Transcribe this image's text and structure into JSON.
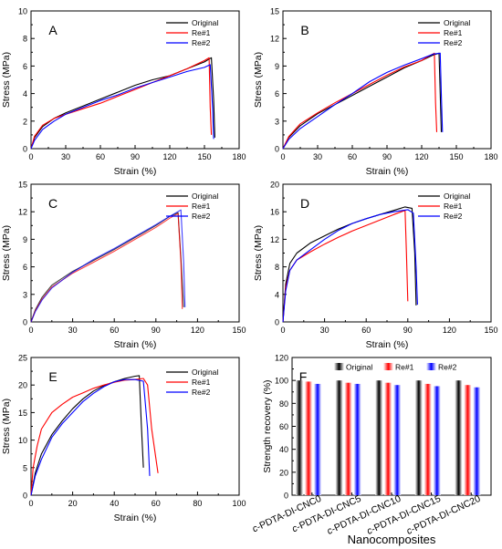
{
  "colors": {
    "original": "#000000",
    "re1": "#ff0000",
    "re2": "#0000ff"
  },
  "chart_data": [
    {
      "panel": "A",
      "type": "line",
      "xlabel": "Strain (%)",
      "ylabel": "Stress (MPa)",
      "xlim": [
        0,
        180
      ],
      "ylim": [
        0,
        10
      ],
      "xticks": [
        "0",
        "30",
        "60",
        "90",
        "120",
        "150",
        "180"
      ],
      "yticks": [
        "0",
        "2",
        "4",
        "6",
        "8",
        "10"
      ],
      "legend": "top-right",
      "grid": false,
      "series": [
        {
          "name": "Original",
          "color": "#000000",
          "points": [
            [
              0,
              0
            ],
            [
              3,
              0.8
            ],
            [
              10,
              1.6
            ],
            [
              20,
              2.2
            ],
            [
              30,
              2.6
            ],
            [
              45,
              3.1
            ],
            [
              60,
              3.6
            ],
            [
              75,
              4.1
            ],
            [
              90,
              4.6
            ],
            [
              105,
              5.0
            ],
            [
              120,
              5.3
            ],
            [
              135,
              5.8
            ],
            [
              150,
              6.3
            ],
            [
              156,
              6.6
            ],
            [
              158,
              3.5
            ],
            [
              159,
              0.8
            ]
          ]
        },
        {
          "name": "Re#1",
          "color": "#ff0000",
          "points": [
            [
              0,
              0
            ],
            [
              3,
              0.9
            ],
            [
              10,
              1.7
            ],
            [
              20,
              2.2
            ],
            [
              30,
              2.5
            ],
            [
              45,
              2.9
            ],
            [
              60,
              3.3
            ],
            [
              75,
              3.8
            ],
            [
              90,
              4.3
            ],
            [
              105,
              4.8
            ],
            [
              120,
              5.3
            ],
            [
              135,
              5.8
            ],
            [
              150,
              6.4
            ],
            [
              154,
              6.6
            ],
            [
              155,
              3.0
            ],
            [
              156,
              1.0
            ]
          ]
        },
        {
          "name": "Re#2",
          "color": "#0000ff",
          "points": [
            [
              0,
              0
            ],
            [
              3,
              0.6
            ],
            [
              10,
              1.4
            ],
            [
              20,
              2.0
            ],
            [
              30,
              2.5
            ],
            [
              45,
              3.0
            ],
            [
              60,
              3.5
            ],
            [
              75,
              3.9
            ],
            [
              90,
              4.4
            ],
            [
              105,
              4.8
            ],
            [
              120,
              5.2
            ],
            [
              135,
              5.6
            ],
            [
              150,
              5.9
            ],
            [
              155,
              6.1
            ],
            [
              157,
              3.0
            ],
            [
              158,
              0.7
            ]
          ]
        }
      ]
    },
    {
      "panel": "B",
      "type": "line",
      "xlabel": "Strain (%)",
      "ylabel": "Stress (MPa)",
      "xlim": [
        0,
        180
      ],
      "ylim": [
        0,
        15
      ],
      "xticks": [
        "0",
        "30",
        "60",
        "90",
        "120",
        "150",
        "180"
      ],
      "yticks": [
        "0",
        "3",
        "6",
        "9",
        "12",
        "15"
      ],
      "legend": "top-right",
      "grid": false,
      "series": [
        {
          "name": "Original",
          "color": "#000000",
          "points": [
            [
              0,
              0
            ],
            [
              5,
              1.2
            ],
            [
              15,
              2.5
            ],
            [
              30,
              3.8
            ],
            [
              45,
              4.8
            ],
            [
              60,
              5.8
            ],
            [
              75,
              6.8
            ],
            [
              90,
              7.8
            ],
            [
              105,
              8.8
            ],
            [
              120,
              9.6
            ],
            [
              130,
              10.2
            ],
            [
              135,
              10.4
            ],
            [
              136,
              6.0
            ],
            [
              137,
              1.8
            ]
          ]
        },
        {
          "name": "Re#1",
          "color": "#ff0000",
          "points": [
            [
              0,
              0
            ],
            [
              5,
              1.3
            ],
            [
              15,
              2.7
            ],
            [
              30,
              3.9
            ],
            [
              45,
              5.0
            ],
            [
              60,
              6.0
            ],
            [
              75,
              7.0
            ],
            [
              90,
              8.0
            ],
            [
              105,
              8.9
            ],
            [
              120,
              9.6
            ],
            [
              128,
              10.2
            ],
            [
              131,
              10.4
            ],
            [
              132,
              5.0
            ],
            [
              133,
              1.8
            ]
          ]
        },
        {
          "name": "Re#2",
          "color": "#0000ff",
          "points": [
            [
              0,
              0
            ],
            [
              5,
              1.0
            ],
            [
              15,
              2.2
            ],
            [
              30,
              3.5
            ],
            [
              45,
              4.8
            ],
            [
              60,
              6.0
            ],
            [
              75,
              7.3
            ],
            [
              90,
              8.3
            ],
            [
              105,
              9.1
            ],
            [
              120,
              9.8
            ],
            [
              130,
              10.3
            ],
            [
              136,
              10.4
            ],
            [
              137,
              6.0
            ],
            [
              138,
              1.8
            ]
          ]
        }
      ]
    },
    {
      "panel": "C",
      "type": "line",
      "xlabel": "Strain (%)",
      "ylabel": "Stress (MPa)",
      "xlim": [
        0,
        150
      ],
      "ylim": [
        0,
        15
      ],
      "xticks": [
        "0",
        "30",
        "60",
        "90",
        "120",
        "150"
      ],
      "yticks": [
        "0",
        "3",
        "6",
        "9",
        "12",
        "15"
      ],
      "legend": "top-right",
      "grid": false,
      "series": [
        {
          "name": "Original",
          "color": "#000000",
          "points": [
            [
              0,
              0
            ],
            [
              3,
              1.3
            ],
            [
              8,
              2.7
            ],
            [
              15,
              4.0
            ],
            [
              30,
              5.5
            ],
            [
              45,
              6.7
            ],
            [
              60,
              7.9
            ],
            [
              75,
              9.2
            ],
            [
              90,
              10.5
            ],
            [
              100,
              11.5
            ],
            [
              106,
              11.9
            ],
            [
              108,
              7.0
            ],
            [
              110,
              1.6
            ]
          ]
        },
        {
          "name": "Re#1",
          "color": "#ff0000",
          "points": [
            [
              0,
              0
            ],
            [
              3,
              1.2
            ],
            [
              8,
              2.5
            ],
            [
              15,
              3.8
            ],
            [
              30,
              5.3
            ],
            [
              45,
              6.5
            ],
            [
              60,
              7.7
            ],
            [
              75,
              9.0
            ],
            [
              90,
              10.3
            ],
            [
              100,
              11.3
            ],
            [
              106,
              11.8
            ],
            [
              108,
              6.5
            ],
            [
              109,
              1.4
            ]
          ]
        },
        {
          "name": "Re#2",
          "color": "#0000ff",
          "points": [
            [
              0,
              0
            ],
            [
              3,
              1.1
            ],
            [
              8,
              2.4
            ],
            [
              15,
              3.7
            ],
            [
              30,
              5.4
            ],
            [
              45,
              6.8
            ],
            [
              60,
              8.0
            ],
            [
              75,
              9.3
            ],
            [
              90,
              10.6
            ],
            [
              100,
              11.5
            ],
            [
              108,
              12.2
            ],
            [
              110,
              6.5
            ],
            [
              111,
              1.6
            ]
          ]
        }
      ]
    },
    {
      "panel": "D",
      "type": "line",
      "xlabel": "Strain (%)",
      "ylabel": "Stress (MPa)",
      "xlim": [
        0,
        150
      ],
      "ylim": [
        0,
        20
      ],
      "xticks": [
        "0",
        "30",
        "60",
        "90",
        "120",
        "150"
      ],
      "yticks": [
        "0",
        "4",
        "8",
        "12",
        "16",
        "20"
      ],
      "legend": "top-right",
      "grid": false,
      "series": [
        {
          "name": "Original",
          "color": "#000000",
          "points": [
            [
              0,
              0
            ],
            [
              2,
              5.5
            ],
            [
              5,
              8.5
            ],
            [
              10,
              10.0
            ],
            [
              20,
              11.5
            ],
            [
              30,
              12.5
            ],
            [
              40,
              13.5
            ],
            [
              50,
              14.3
            ],
            [
              60,
              15.0
            ],
            [
              70,
              15.6
            ],
            [
              80,
              16.2
            ],
            [
              88,
              16.7
            ],
            [
              93,
              16.5
            ],
            [
              95,
              10.0
            ],
            [
              96,
              2.4
            ]
          ]
        },
        {
          "name": "Re#1",
          "color": "#ff0000",
          "points": [
            [
              0,
              0
            ],
            [
              2,
              5.0
            ],
            [
              5,
              7.5
            ],
            [
              10,
              9.0
            ],
            [
              20,
              10.2
            ],
            [
              30,
              11.3
            ],
            [
              40,
              12.3
            ],
            [
              50,
              13.2
            ],
            [
              60,
              14.0
            ],
            [
              70,
              14.8
            ],
            [
              80,
              15.6
            ],
            [
              88,
              16.2
            ],
            [
              89,
              10.0
            ],
            [
              90,
              3.0
            ]
          ]
        },
        {
          "name": "Re#2",
          "color": "#0000ff",
          "points": [
            [
              0,
              0
            ],
            [
              2,
              4.5
            ],
            [
              5,
              7.5
            ],
            [
              10,
              9.0
            ],
            [
              20,
              10.5
            ],
            [
              30,
              12.0
            ],
            [
              40,
              13.3
            ],
            [
              50,
              14.3
            ],
            [
              60,
              15.0
            ],
            [
              70,
              15.6
            ],
            [
              80,
              16.0
            ],
            [
              90,
              16.3
            ],
            [
              94,
              15.8
            ],
            [
              96,
              8.0
            ],
            [
              97,
              2.5
            ]
          ]
        }
      ]
    },
    {
      "panel": "E",
      "type": "line",
      "xlabel": "Strain (%)",
      "ylabel": "Stress (MPa)",
      "xlim": [
        0,
        100
      ],
      "ylim": [
        0,
        25
      ],
      "xticks": [
        "0",
        "20",
        "40",
        "60",
        "80",
        "100"
      ],
      "yticks": [
        "0",
        "5",
        "10",
        "15",
        "20",
        "25"
      ],
      "legend": "top-right",
      "grid": false,
      "series": [
        {
          "name": "Original",
          "color": "#000000",
          "points": [
            [
              0,
              0
            ],
            [
              2,
              4.0
            ],
            [
              5,
              7.5
            ],
            [
              10,
              11.0
            ],
            [
              15,
              13.5
            ],
            [
              20,
              15.7
            ],
            [
              25,
              17.5
            ],
            [
              30,
              18.9
            ],
            [
              35,
              19.9
            ],
            [
              40,
              20.6
            ],
            [
              45,
              21.2
            ],
            [
              50,
              21.6
            ],
            [
              52,
              21.7
            ],
            [
              53,
              13.0
            ],
            [
              54,
              5.0
            ]
          ]
        },
        {
          "name": "Re#1",
          "color": "#ff0000",
          "points": [
            [
              0,
              0
            ],
            [
              1,
              5.0
            ],
            [
              3,
              9.0
            ],
            [
              5,
              12.0
            ],
            [
              10,
              15.0
            ],
            [
              15,
              16.5
            ],
            [
              20,
              17.8
            ],
            [
              25,
              18.6
            ],
            [
              30,
              19.4
            ],
            [
              35,
              20.0
            ],
            [
              40,
              20.5
            ],
            [
              45,
              20.9
            ],
            [
              50,
              21.0
            ],
            [
              54,
              21.2
            ],
            [
              56,
              20.0
            ],
            [
              58,
              12.0
            ],
            [
              61,
              4.0
            ]
          ]
        },
        {
          "name": "Re#2",
          "color": "#0000ff",
          "points": [
            [
              0,
              0
            ],
            [
              2,
              3.5
            ],
            [
              5,
              6.5
            ],
            [
              10,
              10.5
            ],
            [
              15,
              13.0
            ],
            [
              20,
              15.0
            ],
            [
              25,
              17.0
            ],
            [
              30,
              18.5
            ],
            [
              35,
              19.7
            ],
            [
              40,
              20.6
            ],
            [
              45,
              21.0
            ],
            [
              50,
              21.0
            ],
            [
              54,
              20.7
            ],
            [
              56,
              12.0
            ],
            [
              57,
              3.5
            ]
          ]
        }
      ]
    },
    {
      "panel": "F",
      "type": "bar",
      "xlabel": "Nanocomposites",
      "ylabel": "Strength recovery (%)",
      "ylim": [
        0,
        120
      ],
      "yticks": [
        "0",
        "20",
        "40",
        "60",
        "80",
        "100",
        "120"
      ],
      "legend": "top",
      "grid": false,
      "categories": [
        "c-PDTA-DI-CNC0",
        "c-PDTA-DI-CNC5",
        "c-PDTA-DI-CNC10",
        "c-PDTA-DI-CNC15",
        "c-PDTA-DI-CNC20"
      ],
      "series": [
        {
          "name": "Original",
          "color": "#000000",
          "values": [
            100,
            100,
            100,
            100,
            100
          ]
        },
        {
          "name": "Re#1",
          "color": "#ff0000",
          "values": [
            99,
            98,
            98,
            97,
            96
          ]
        },
        {
          "name": "Re#2",
          "color": "#0000ff",
          "values": [
            97,
            97,
            96,
            95,
            94
          ]
        }
      ]
    }
  ]
}
